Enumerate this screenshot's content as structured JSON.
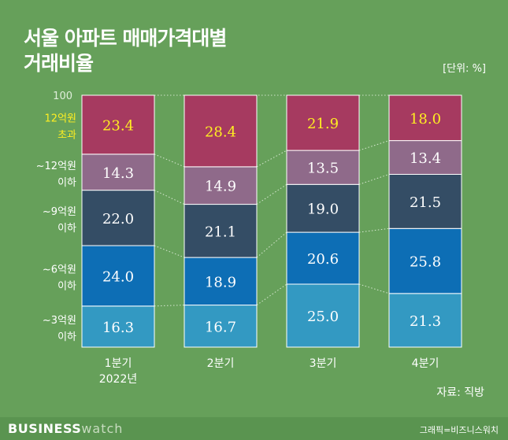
{
  "title_line1": "서울 아파트 매매가격대별",
  "title_line2": "거래비율",
  "unit": "[단위: %]",
  "source": "자료: 직방",
  "brand_bold": "BUSINESS",
  "brand_light": "watch",
  "credit": "그래픽=비즈니스워치",
  "colors": {
    "background": "#66a05a",
    "over12": "#a63a60",
    "to12": "#8f6a8a",
    "to9": "#344d65",
    "to6": "#0d6eb5",
    "to3": "#3399c2",
    "highlight_text": "#ffee22"
  },
  "chart_data": {
    "type": "bar",
    "stacked": true,
    "ylim": [
      0,
      100
    ],
    "y_tick_label": "100",
    "categories": [
      "1분기\n2022년",
      "2분기",
      "3분기",
      "4분기"
    ],
    "category_lines": [
      [
        "1분기",
        "2022년"
      ],
      [
        "2분기"
      ],
      [
        "3분기"
      ],
      [
        "4분기"
      ]
    ],
    "series": [
      {
        "name": "~3억원 이하",
        "label_lines": [
          "~3억원",
          "이하"
        ],
        "color": "#3399c2",
        "values": [
          16.3,
          16.7,
          25.0,
          21.3
        ]
      },
      {
        "name": "~6억원 이하",
        "label_lines": [
          "~6억원",
          "이하"
        ],
        "color": "#0d6eb5",
        "values": [
          24.0,
          18.9,
          20.6,
          25.8
        ]
      },
      {
        "name": "~9억원 이하",
        "label_lines": [
          "~9억원",
          "이하"
        ],
        "color": "#344d65",
        "values": [
          22.0,
          21.1,
          19.0,
          21.5
        ]
      },
      {
        "name": "~12억원 이하",
        "label_lines": [
          "~12억원",
          "이하"
        ],
        "color": "#8f6a8a",
        "values": [
          14.3,
          14.9,
          13.5,
          13.4
        ]
      },
      {
        "name": "12억원 초과",
        "label_lines": [
          "12억원",
          "초과"
        ],
        "color": "#a63a60",
        "values": [
          23.4,
          28.4,
          21.9,
          18.0
        ],
        "highlight": true
      }
    ]
  }
}
